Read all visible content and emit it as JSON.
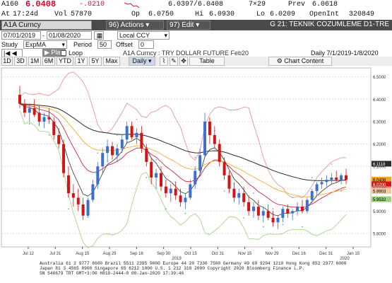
{
  "quote": {
    "ticker": "A160",
    "last": "6.0408",
    "change": "-.0210",
    "bid_ask": "6.0397/6.0408",
    "size": "7×29",
    "prev_label": "Prev",
    "prev": "6.0618",
    "at_label": "At",
    "time": "17:24d",
    "vol_label": "Vol",
    "vol": "57870",
    "op_label": "Op",
    "open": "6.0750",
    "hi_label": "Hi",
    "high": "6.0930",
    "lo_label": "Lo",
    "low": "6.0209",
    "oi_label": "OpenInt",
    "open_int": "320849"
  },
  "toolbar": {
    "security": "A1A Curncy",
    "actions": "96) Actions",
    "edit": "97) Edit",
    "title": "G 21: TEKNIK COZUMLEME D1-TRE"
  },
  "range": {
    "start": "07/01/2019",
    "end": "01/08/2020",
    "currency": "Local CCY"
  },
  "study": {
    "study_label": "Study",
    "study": "ExpMA",
    "period_label": "Period",
    "period": "50",
    "offset_label": "Offset",
    "offset": "0",
    "play": "Play",
    "loop": "Loop",
    "security_desc": "A1A Curncy : TRY DOLLAR FUTURE Feb20",
    "period_range": "Daily   7/1/2019-1/8/2020"
  },
  "rangebar": {
    "buttons": [
      "1D",
      "3D",
      "1M",
      "6M",
      "YTD",
      "1Y",
      "5Y",
      "Max"
    ],
    "frequency": "Daily",
    "table": "Table",
    "chart_content": "Chart Content"
  },
  "chart_data": {
    "type": "candlestick",
    "title": "",
    "ylim": [
      5.74,
      6.54
    ],
    "yticks": [
      "6.5000",
      "6.4000",
      "6.3000",
      "6.2000",
      "6.1000",
      "6.0000",
      "5.9000",
      "5.8000"
    ],
    "xticks": [
      "Jul 12",
      "Jul 31",
      "Aug 15",
      "Aug 29",
      "Sep 16",
      "Sep 30",
      "Oct 15",
      "Oct 31",
      "Nov 15",
      "Nov 29",
      "Dec 16",
      "Dec 31",
      "Jan 15"
    ],
    "year_labels": [
      "2019",
      "2020"
    ],
    "last_value_tags": [
      {
        "value": "6.1118",
        "color": "#ffffff",
        "bg": "#2a2a2a"
      },
      {
        "value": "6.0408",
        "color": "#000000",
        "bg": "#f3a41b"
      },
      {
        "value": "6.0200",
        "color": "#ffffff",
        "bg": "#d21414"
      },
      {
        "value": "5.9977",
        "color": "#000000",
        "bg": "#e58b8b"
      },
      {
        "value": "5.9903",
        "color": "#000000",
        "bg": "#f2c8a0"
      },
      {
        "value": "5.9532",
        "color": "#000000",
        "bg": "#9dd07b"
      }
    ],
    "candles": [
      [
        6.42,
        6.46,
        6.36,
        6.38
      ],
      [
        6.38,
        6.4,
        6.32,
        6.34
      ],
      [
        6.34,
        6.38,
        6.3,
        6.36
      ],
      [
        6.36,
        6.4,
        6.32,
        6.33
      ],
      [
        6.34,
        6.37,
        6.28,
        6.3
      ],
      [
        6.3,
        6.34,
        6.27,
        6.32
      ],
      [
        6.32,
        6.36,
        6.29,
        6.31
      ],
      [
        6.3,
        6.32,
        6.22,
        6.24
      ],
      [
        6.24,
        6.27,
        6.18,
        6.2
      ],
      [
        6.2,
        6.22,
        6.05,
        6.07
      ],
      [
        6.06,
        6.1,
        5.96,
        5.98
      ],
      [
        5.98,
        6.02,
        5.92,
        5.96
      ],
      [
        5.96,
        6.0,
        5.9,
        5.93
      ],
      [
        5.93,
        5.96,
        5.86,
        5.88
      ],
      [
        5.88,
        5.96,
        5.87,
        5.95
      ],
      [
        5.95,
        6.04,
        5.94,
        6.02
      ],
      [
        6.02,
        6.12,
        6.0,
        6.1
      ],
      [
        6.1,
        6.18,
        6.07,
        6.16
      ],
      [
        6.16,
        6.22,
        6.12,
        6.19
      ],
      [
        6.19,
        6.21,
        6.13,
        6.15
      ],
      [
        6.15,
        6.2,
        6.12,
        6.18
      ],
      [
        6.18,
        6.24,
        6.16,
        6.22
      ],
      [
        6.22,
        6.3,
        6.2,
        6.28
      ],
      [
        6.28,
        6.3,
        6.22,
        6.23
      ],
      [
        6.23,
        6.27,
        6.2,
        6.25
      ],
      [
        6.25,
        6.28,
        6.16,
        6.18
      ],
      [
        6.18,
        6.2,
        6.1,
        6.12
      ],
      [
        6.12,
        6.14,
        6.02,
        6.05
      ],
      [
        6.05,
        6.09,
        6.0,
        6.07
      ],
      [
        6.07,
        6.1,
        5.99,
        6.01
      ],
      [
        6.01,
        6.04,
        5.96,
        5.98
      ],
      [
        5.98,
        6.02,
        5.94,
        6.0
      ],
      [
        6.0,
        6.03,
        5.95,
        5.97
      ],
      [
        5.97,
        6.0,
        5.92,
        5.94
      ],
      [
        5.94,
        5.98,
        5.91,
        5.96
      ],
      [
        5.96,
        6.04,
        5.95,
        6.02
      ],
      [
        6.02,
        6.1,
        6.0,
        6.08
      ],
      [
        6.08,
        6.18,
        6.06,
        6.15
      ],
      [
        6.15,
        6.34,
        6.14,
        6.3
      ],
      [
        6.3,
        6.32,
        6.2,
        6.24
      ],
      [
        6.24,
        6.28,
        6.18,
        6.2
      ],
      [
        6.2,
        6.22,
        6.1,
        6.12
      ],
      [
        6.12,
        6.14,
        6.04,
        6.06
      ],
      [
        6.06,
        6.08,
        5.98,
        6.0
      ],
      [
        6.0,
        6.03,
        5.94,
        5.96
      ],
      [
        5.96,
        6.0,
        5.93,
        5.98
      ],
      [
        5.98,
        6.01,
        5.92,
        5.94
      ],
      [
        5.94,
        5.97,
        5.88,
        5.9
      ],
      [
        5.9,
        5.94,
        5.87,
        5.92
      ],
      [
        5.92,
        5.95,
        5.86,
        5.88
      ],
      [
        5.88,
        5.92,
        5.85,
        5.9
      ],
      [
        5.9,
        5.93,
        5.86,
        5.87
      ],
      [
        5.87,
        5.9,
        5.83,
        5.85
      ],
      [
        5.85,
        5.88,
        5.82,
        5.87
      ],
      [
        5.87,
        5.92,
        5.85,
        5.91
      ],
      [
        5.91,
        5.93,
        5.87,
        5.89
      ],
      [
        5.89,
        5.91,
        5.86,
        5.9
      ],
      [
        5.9,
        5.94,
        5.88,
        5.92
      ],
      [
        5.92,
        5.95,
        5.89,
        5.9
      ],
      [
        5.9,
        5.96,
        5.89,
        5.95
      ],
      [
        5.95,
        6.0,
        5.93,
        5.99
      ],
      [
        5.99,
        6.03,
        5.97,
        6.02
      ],
      [
        6.02,
        6.05,
        6.0,
        6.03
      ],
      [
        6.03,
        6.06,
        6.01,
        6.04
      ],
      [
        6.04,
        6.07,
        6.02,
        6.05
      ],
      [
        6.05,
        6.08,
        6.03,
        6.04
      ],
      [
        6.04,
        6.07,
        6.02,
        6.06
      ],
      [
        6.06,
        6.09,
        6.02,
        6.04
      ]
    ]
  },
  "footer": {
    "line1": "Australia 61 2 9777 8600 Brazil 5511 2395 9000 Europe 44 20 7330 7500 Germany 49 69 9204 1210 Hong Kong 852 2977 6000",
    "line2": "Japan 81 3 4565 8900       Singapore 65 6212 1000       U.S. 1 212 318 2000                    Copyright 2020 Bloomberg Finance L.P.",
    "line3": "                                                            SN 546679 TRT  GMT+3:00 H819-2444-0 08-Jan-2020 17:39:46"
  }
}
